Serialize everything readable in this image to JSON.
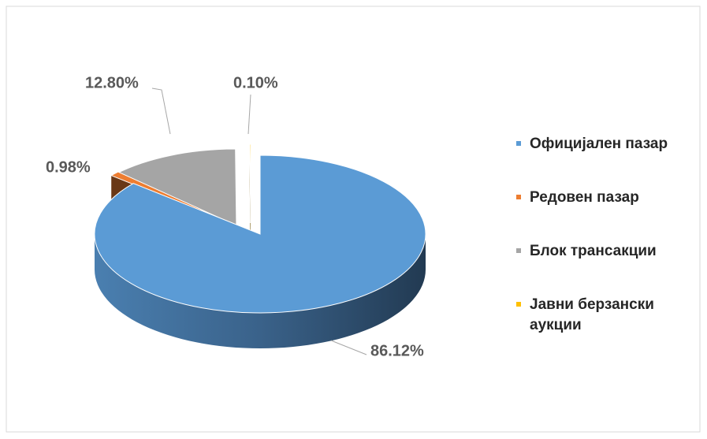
{
  "chart_data": {
    "type": "pie3d",
    "series": [
      {
        "name": "Официјален пазар",
        "color": "#5b9bd5",
        "value": 86.12,
        "value_label": "86.12%"
      },
      {
        "name": "Редовен пазар",
        "color": "#ed7d31",
        "value": 0.98,
        "value_label": "0.98%"
      },
      {
        "name": "Блок трансакции",
        "color": "#a5a5a5",
        "value": 12.8,
        "value_label": "12.80%"
      },
      {
        "name": "Јавни берзански аукции",
        "color": "#ffc000",
        "value": 0.1,
        "value_label": "0.10%"
      }
    ],
    "legend": "right"
  }
}
